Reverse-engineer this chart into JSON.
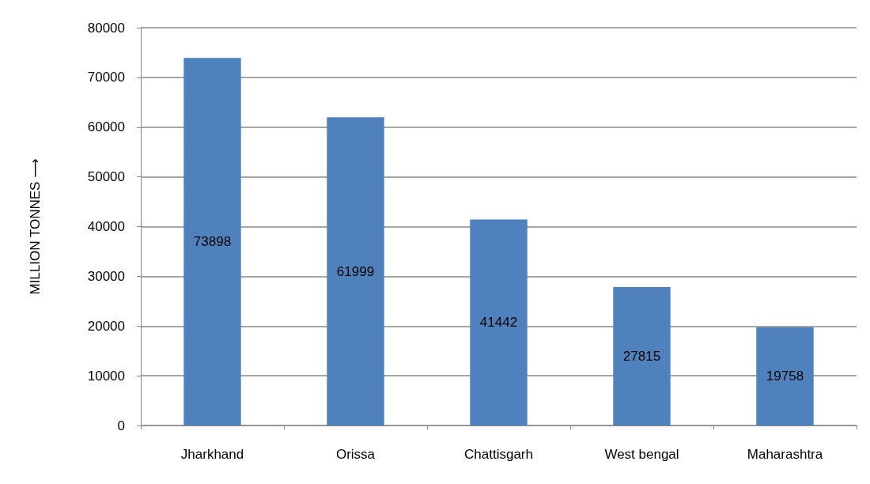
{
  "chart_data": {
    "type": "bar",
    "ylabel": "MILLION TONNES ⟶",
    "categories": [
      "Jharkhand",
      "Orissa",
      "Chattisgarh",
      "West bengal",
      "Maharashtra"
    ],
    "values": [
      73898,
      61999,
      41442,
      27815,
      19758
    ],
    "color": "#4f81bd",
    "ylim": [
      0,
      80000
    ],
    "yticks": [
      0,
      10000,
      20000,
      30000,
      40000,
      50000,
      60000,
      70000,
      80000
    ],
    "grid": "y",
    "data_labels": true
  }
}
